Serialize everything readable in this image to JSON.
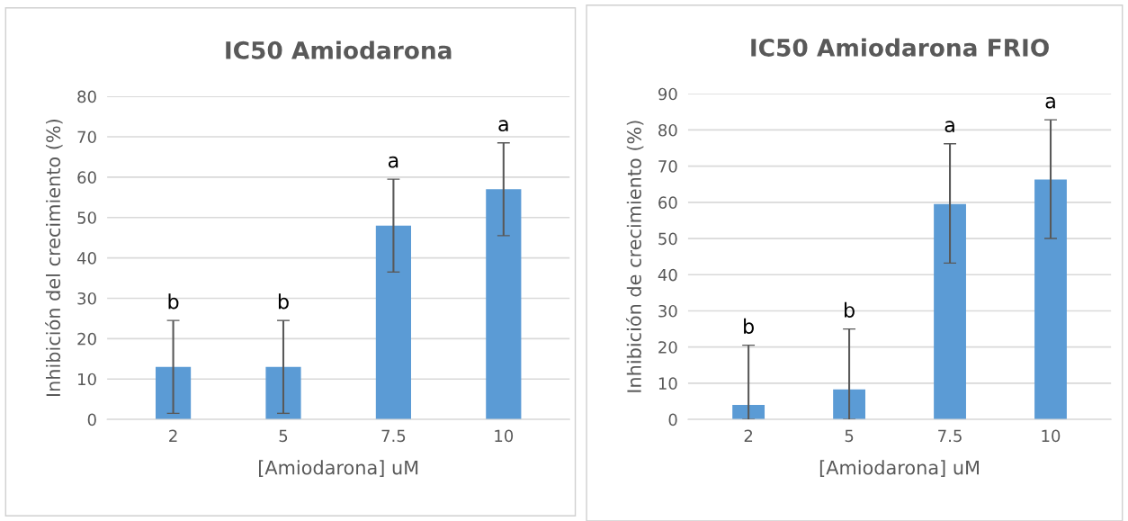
{
  "chart_data": [
    {
      "type": "bar",
      "title": "IC50 Amiodarona",
      "xlabel": "[Amiodarona] uM",
      "ylabel": "Inhibición del crecimiento (%)",
      "categories": [
        "2",
        "5",
        "7.5",
        "10"
      ],
      "values": [
        13,
        13,
        48,
        57
      ],
      "color": "#5b9bd5",
      "errors": [
        [
          1.5,
          24.5
        ],
        [
          1.5,
          24.5
        ],
        [
          36.5,
          59.5
        ],
        [
          45.5,
          68.5
        ]
      ],
      "ylim": [
        0,
        80
      ],
      "yticks": [
        0,
        10,
        20,
        30,
        40,
        50,
        60,
        70,
        80
      ],
      "grid": "y",
      "annotations": [
        "b",
        "b",
        "a",
        "a"
      ]
    },
    {
      "type": "bar",
      "title": "IC50 Amiodarona FRIO",
      "xlabel": "[Amiodarona] uM",
      "ylabel": "Inhibición de crecimiento (%)",
      "categories": [
        "2",
        "5",
        "7.5",
        "10"
      ],
      "values": [
        4,
        8.3,
        59.5,
        66.3
      ],
      "color": "#5b9bd5",
      "errors": [
        [
          0,
          20.5
        ],
        [
          0,
          25
        ],
        [
          43.2,
          76.2
        ],
        [
          50,
          82.8
        ]
      ],
      "ylim": [
        0,
        90
      ],
      "yticks": [
        0,
        10,
        20,
        30,
        40,
        50,
        60,
        70,
        80,
        90
      ],
      "grid": "y",
      "annotations": [
        "b",
        "b",
        "a",
        "a"
      ]
    }
  ]
}
